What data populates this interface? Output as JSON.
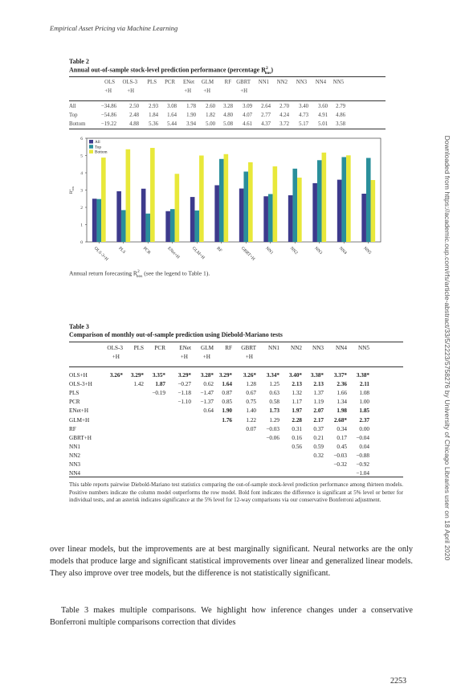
{
  "running_head": "Empirical Asset Pricing via Machine Learning",
  "table2": {
    "label": "Table 2",
    "title": "Annual out-of-sample stock-level prediction performance (percentage R",
    "title_sup": "2",
    "title_sub": "oos",
    "title_close": ")",
    "headers_top": [
      "OLS",
      "OLS-3",
      "PLS",
      "PCR",
      "ENet",
      "GLM",
      "RF",
      "GBRT",
      "NN1",
      "NN2",
      "NN3",
      "NN4",
      "NN5"
    ],
    "headers_bottom": [
      "+H",
      "+H",
      "",
      "",
      "+H",
      "+H",
      "",
      "+H",
      "",
      "",
      "",
      "",
      ""
    ],
    "rows": [
      {
        "label": "All",
        "values": [
          "−34.86",
          "2.50",
          "2.93",
          "3.08",
          "1.78",
          "2.60",
          "3.28",
          "3.09",
          "2.64",
          "2.70",
          "3.40",
          "3.60",
          "2.79"
        ]
      },
      {
        "label": "Top",
        "values": [
          "−54.86",
          "2.48",
          "1.84",
          "1.64",
          "1.90",
          "1.82",
          "4.80",
          "4.07",
          "2.77",
          "4.24",
          "4.73",
          "4.91",
          "4.86"
        ]
      },
      {
        "label": "Bottom",
        "values": [
          "−19.22",
          "4.88",
          "5.36",
          "5.44",
          "3.94",
          "5.00",
          "5.08",
          "4.61",
          "4.37",
          "3.72",
          "5.17",
          "5.01",
          "3.58"
        ]
      }
    ]
  },
  "chart_data": {
    "type": "bar",
    "categories": [
      "OLS-3+H",
      "PLS",
      "PCR",
      "ENet+H",
      "GLM+H",
      "RF",
      "GBRT+H",
      "NN1",
      "NN2",
      "NN3",
      "NN4",
      "NN5"
    ],
    "series": [
      {
        "name": "All",
        "color": "#3d3a8c",
        "values": [
          2.5,
          2.93,
          3.08,
          1.78,
          2.6,
          3.28,
          3.09,
          2.64,
          2.7,
          3.4,
          3.6,
          2.79
        ]
      },
      {
        "name": "Top",
        "color": "#2a8f9b",
        "values": [
          2.48,
          1.84,
          1.64,
          1.9,
          1.82,
          4.8,
          4.07,
          2.77,
          4.24,
          4.73,
          4.91,
          4.86
        ]
      },
      {
        "name": "Bottom",
        "color": "#e8e83a",
        "values": [
          4.88,
          5.36,
          5.44,
          3.94,
          5.0,
          5.08,
          4.61,
          4.37,
          3.72,
          5.17,
          5.01,
          3.58
        ]
      }
    ],
    "ylim": [
      0,
      6
    ],
    "yticks": [
      "0",
      "1",
      "2",
      "3",
      "4",
      "5",
      "6"
    ],
    "ylabel_main": "R",
    "ylabel_sup": "2",
    "ylabel_sub": "oos",
    "legend_position": "top-left",
    "grid": false
  },
  "figure_caption": {
    "pre": "Annual return forecasting R",
    "sup": "2",
    "sub": "oos",
    "post": " (see the legend to Table 1)."
  },
  "table3": {
    "label": "Table 3",
    "title": "Comparison of monthly out-of-sample prediction using Diebold-Mariano tests",
    "headers_top": [
      "OLS-3",
      "PLS",
      "PCR",
      "ENet",
      "GLM",
      "RF",
      "GBRT",
      "NN1",
      "NN2",
      "NN3",
      "NN4",
      "NN5"
    ],
    "headers_bottom": [
      "+H",
      "",
      "",
      "+H",
      "+H",
      "",
      "+H",
      "",
      "",
      "",
      "",
      ""
    ],
    "rows": [
      {
        "label": "OLS+H",
        "values": [
          "3.26*",
          "3.29*",
          "3.35*",
          "3.29*",
          "3.28*",
          "3.29*",
          "3.26*",
          "3.34*",
          "3.40*",
          "3.38*",
          "3.37*",
          "3.38*"
        ],
        "bold": [
          1,
          1,
          1,
          1,
          1,
          1,
          1,
          1,
          1,
          1,
          1,
          1
        ]
      },
      {
        "label": "OLS-3+H",
        "values": [
          "",
          "1.42",
          "1.87",
          "−0.27",
          "0.62",
          "1.64",
          "1.28",
          "1.25",
          "2.13",
          "2.13",
          "2.36",
          "2.11"
        ],
        "bold": [
          0,
          0,
          1,
          0,
          0,
          1,
          0,
          0,
          1,
          1,
          1,
          1
        ]
      },
      {
        "label": "PLS",
        "values": [
          "",
          "",
          "−0.19",
          "−1.18",
          "−1.47",
          "0.87",
          "0.67",
          "0.63",
          "1.32",
          "1.37",
          "1.66",
          "1.08"
        ],
        "bold": [
          0,
          0,
          0,
          0,
          0,
          0,
          0,
          0,
          0,
          0,
          0,
          0
        ]
      },
      {
        "label": "PCR",
        "values": [
          "",
          "",
          "",
          "−1.10",
          "−1.37",
          "0.85",
          "0.75",
          "0.58",
          "1.17",
          "1.19",
          "1.34",
          "1.00"
        ],
        "bold": [
          0,
          0,
          0,
          0,
          0,
          0,
          0,
          0,
          0,
          0,
          0,
          0
        ]
      },
      {
        "label": "ENet+H",
        "values": [
          "",
          "",
          "",
          "",
          "0.64",
          "1.90",
          "1.40",
          "1.73",
          "1.97",
          "2.07",
          "1.98",
          "1.85"
        ],
        "bold": [
          0,
          0,
          0,
          0,
          0,
          1,
          0,
          1,
          1,
          1,
          1,
          1
        ]
      },
      {
        "label": "GLM+H",
        "values": [
          "",
          "",
          "",
          "",
          "",
          "1.76",
          "1.22",
          "1.29",
          "2.28",
          "2.17",
          "2.68*",
          "2.37"
        ],
        "bold": [
          0,
          0,
          0,
          0,
          0,
          1,
          0,
          0,
          1,
          1,
          1,
          1
        ]
      },
      {
        "label": "RF",
        "values": [
          "",
          "",
          "",
          "",
          "",
          "",
          "0.07",
          "−0.03",
          "0.31",
          "0.37",
          "0.34",
          "0.00"
        ],
        "bold": [
          0,
          0,
          0,
          0,
          0,
          0,
          0,
          0,
          0,
          0,
          0,
          0
        ]
      },
      {
        "label": "GBRT+H",
        "values": [
          "",
          "",
          "",
          "",
          "",
          "",
          "",
          "−0.06",
          "0.16",
          "0.21",
          "0.17",
          "−0.04"
        ],
        "bold": [
          0,
          0,
          0,
          0,
          0,
          0,
          0,
          0,
          0,
          0,
          0,
          0
        ]
      },
      {
        "label": "NN1",
        "values": [
          "",
          "",
          "",
          "",
          "",
          "",
          "",
          "",
          "0.56",
          "0.59",
          "0.45",
          "0.04"
        ],
        "bold": [
          0,
          0,
          0,
          0,
          0,
          0,
          0,
          0,
          0,
          0,
          0,
          0
        ]
      },
      {
        "label": "NN2",
        "values": [
          "",
          "",
          "",
          "",
          "",
          "",
          "",
          "",
          "",
          "0.32",
          "−0.03",
          "−0.88"
        ],
        "bold": [
          0,
          0,
          0,
          0,
          0,
          0,
          0,
          0,
          0,
          0,
          0,
          0
        ]
      },
      {
        "label": "NN3",
        "values": [
          "",
          "",
          "",
          "",
          "",
          "",
          "",
          "",
          "",
          "",
          "−0.32",
          "−0.92"
        ],
        "bold": [
          0,
          0,
          0,
          0,
          0,
          0,
          0,
          0,
          0,
          0,
          0,
          0
        ]
      },
      {
        "label": "NN4",
        "values": [
          "",
          "",
          "",
          "",
          "",
          "",
          "",
          "",
          "",
          "",
          "",
          "−1.04"
        ],
        "bold": [
          0,
          0,
          0,
          0,
          0,
          0,
          0,
          0,
          0,
          0,
          0,
          0
        ]
      }
    ],
    "note": "This table reports pairwise Diebold-Mariano test statistics comparing the out-of-sample stock-level prediction performance among thirteen models. Positive numbers indicate the column model outperforms the row model. Bold font indicates the difference is significant at 5% level or better for individual tests, and an asterisk indicates significance at the 5% level for 12-way comparisons via our conservative Bonferroni adjustment."
  },
  "body_paragraphs": [
    "over linear models, but the improvements are at best marginally significant. Neural networks are the only models that produce large and significant statistical improvements over linear and generalized linear models. They also improve over tree models, but the difference is not statistically significant.",
    "Table 3 makes multiple comparisons. We highlight how inference changes under a conservative Bonferroni multiple comparisons correction that divides"
  ],
  "page_number": "2253",
  "sidebar_text": "Downloaded from https://academic.oup.com/rfs/article-abstract/33/5/2223/5758276 by University of Chicago Libraries user on 18 April 2020"
}
